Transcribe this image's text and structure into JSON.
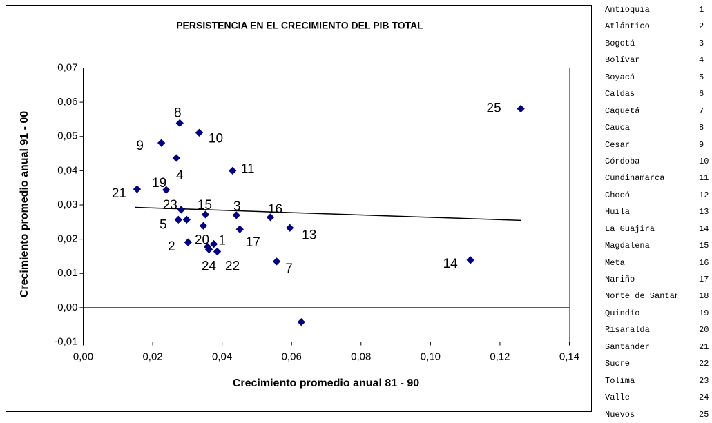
{
  "chart_data": {
    "type": "scatter",
    "title": "PERSISTENCIA EN EL CRECIMIENTO DEL PIB TOTAL",
    "x_label": "Crecimiento promedio anual 81 - 90",
    "y_label": "Crecimiento promedio anual 91 - 00",
    "color": "#000080",
    "x": [
      0.126,
      0.0278,
      0.0334,
      0.0225,
      0.0268,
      0.043,
      0.0155,
      0.0239,
      0.0282,
      0.0352,
      0.0441,
      0.0539,
      0.0274,
      0.0298,
      0.0595,
      0.0451,
      0.0302,
      0.0358,
      0.0376,
      0.0362,
      0.0386,
      0.0557,
      0.1115,
      0.0628,
      0.0346
    ],
    "y": [
      0.0581,
      0.0539,
      0.0511,
      0.0481,
      0.0437,
      0.04,
      0.0346,
      0.0344,
      0.0286,
      0.0272,
      0.027,
      0.0264,
      0.0257,
      0.0257,
      0.0233,
      0.0229,
      0.0191,
      0.0178,
      0.0186,
      0.017,
      0.0164,
      0.0135,
      0.0139,
      -0.0042,
      0.0239
    ],
    "point_labels": [
      "25",
      "8",
      "10",
      "9",
      "4",
      "11",
      "21",
      "19",
      "23",
      "15",
      "3",
      "16",
      "5",
      null,
      "13",
      "17",
      "2",
      "20",
      "1",
      "24",
      "22",
      "7",
      "14",
      null,
      null
    ],
    "trendline": {
      "x": [
        0.015,
        0.126
      ],
      "y": [
        0.0293,
        0.0255
      ]
    },
    "xlim": [
      0,
      0.14
    ],
    "xticks": [
      {
        "value": 0,
        "label": "0,00"
      },
      {
        "value": 0.02,
        "label": "0,02"
      },
      {
        "value": 0.04,
        "label": "0,04"
      },
      {
        "value": 0.06,
        "label": "0,06"
      },
      {
        "value": 0.08,
        "label": "0,08"
      },
      {
        "value": 0.1,
        "label": "0,10"
      },
      {
        "value": 0.12,
        "label": "0,12"
      },
      {
        "value": 0.14,
        "label": "0,14"
      }
    ],
    "ylim": [
      -0.01,
      0.07
    ],
    "yticks": [
      {
        "value": -0.01,
        "label": "-0,01"
      },
      {
        "value": 0,
        "label": "0,00"
      },
      {
        "value": 0.01,
        "label": "0,01"
      },
      {
        "value": 0.02,
        "label": "0,02"
      },
      {
        "value": 0.03,
        "label": "0,03"
      },
      {
        "value": 0.04,
        "label": "0,04"
      },
      {
        "value": 0.05,
        "label": "0,05"
      },
      {
        "value": 0.06,
        "label": "0,06"
      },
      {
        "value": 0.07,
        "label": "0,07"
      }
    ]
  },
  "table": {
    "rows": [
      [
        "Antioquia",
        "1"
      ],
      [
        "Atlántico",
        "2"
      ],
      [
        "Bogotá",
        "3"
      ],
      [
        "Bolívar",
        "4"
      ],
      [
        "Boyacá",
        "5"
      ],
      [
        "Caldas",
        "6"
      ],
      [
        "Caquetá",
        "7"
      ],
      [
        "Cauca",
        "8"
      ],
      [
        "Cesar",
        "9"
      ],
      [
        "Córdoba",
        "10"
      ],
      [
        "Cundinamarca",
        "11"
      ],
      [
        "Chocó",
        "12"
      ],
      [
        "Huila",
        "13"
      ],
      [
        "La Guajira",
        "14"
      ],
      [
        "Magdalena",
        "15"
      ],
      [
        "Meta",
        "16"
      ],
      [
        "Nariño",
        "17"
      ],
      [
        "Norte de Santander",
        "18"
      ],
      [
        "Quindío",
        "19"
      ],
      [
        "Risaralda",
        "20"
      ],
      [
        "Santander",
        "21"
      ],
      [
        "Sucre",
        "22"
      ],
      [
        "Tolima",
        "23"
      ],
      [
        "Valle",
        "24"
      ],
      [
        "Nuevos",
        "25"
      ]
    ]
  }
}
